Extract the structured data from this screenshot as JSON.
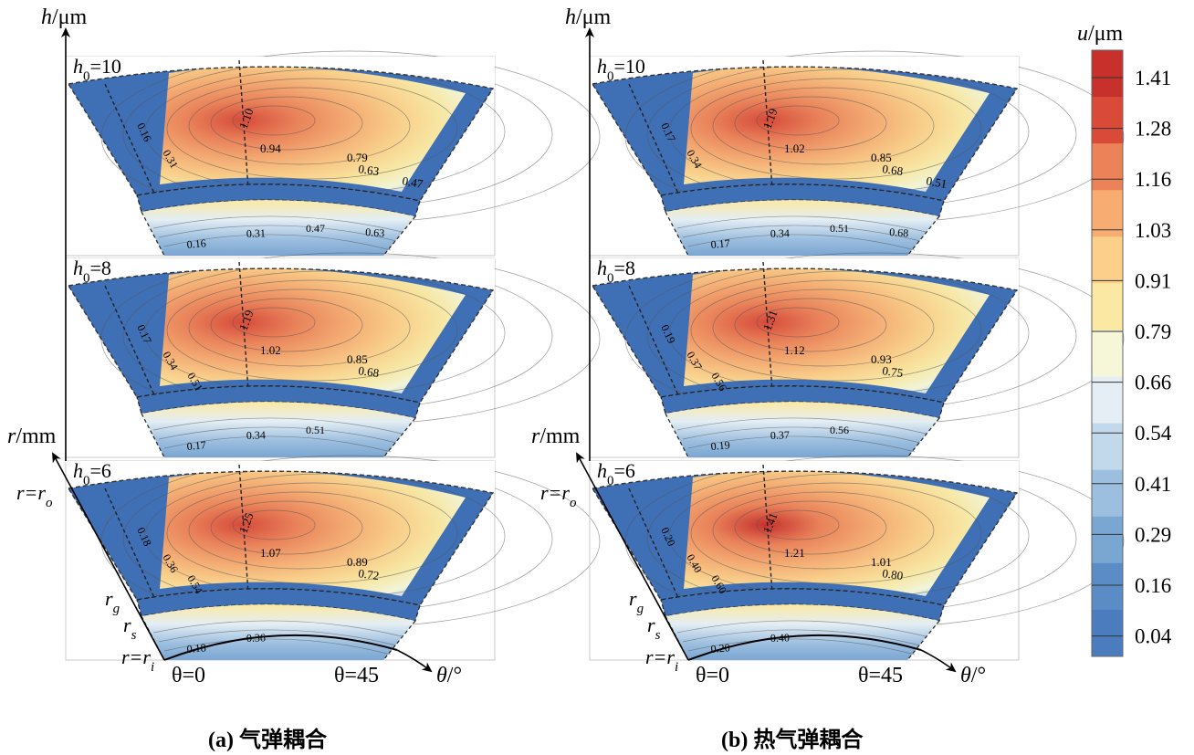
{
  "colorbar": {
    "title_var": "u",
    "title_unit": "/μm",
    "ticks": [
      "1.41",
      "1.28",
      "1.16",
      "1.03",
      "0.91",
      "0.79",
      "0.66",
      "0.54",
      "0.41",
      "0.29",
      "0.16",
      "0.04"
    ]
  },
  "axes": {
    "h_var": "h",
    "h_unit": "/μm",
    "r_var": "r",
    "r_unit": "/mm",
    "theta_var": "θ",
    "theta_unit": "/°",
    "r_o_label": "r=r",
    "r_o_sub": "o",
    "r_g_label": "r",
    "r_g_sub": "g",
    "r_s_label": "r",
    "r_s_sub": "s",
    "r_i_label": "r=r",
    "r_i_sub": "i",
    "theta0": "θ=0",
    "theta45": "θ=45"
  },
  "panels": [
    {
      "caption_prefix": "(a)",
      "caption_text": "气弹耦合",
      "layers": [
        {
          "h0_var": "h",
          "h0_sub": "0",
          "h0_value": "=10",
          "upper_labels": [
            "0.16",
            "0.31",
            "1.10",
            "0.94",
            "0.79",
            "0.63",
            "0.47"
          ],
          "lower_labels": [
            "0.16",
            "0.31",
            "0.47",
            "0.63"
          ]
        },
        {
          "h0_var": "h",
          "h0_sub": "0",
          "h0_value": "=8",
          "upper_labels": [
            "0.17",
            "0.34",
            "0.51",
            "1.19",
            "1.02",
            "0.85",
            "0.68"
          ],
          "lower_labels": [
            "0.17",
            "0.34",
            "0.51"
          ]
        },
        {
          "h0_var": "h",
          "h0_sub": "0",
          "h0_value": "=6",
          "upper_labels": [
            "0.18",
            "0.36",
            "0.54",
            "1.25",
            "1.07",
            "0.89",
            "0.72"
          ],
          "lower_labels": [
            "0.18",
            "0.36"
          ]
        }
      ]
    },
    {
      "caption_prefix": "(b)",
      "caption_text": "热气弹耦合",
      "layers": [
        {
          "h0_var": "h",
          "h0_sub": "0",
          "h0_value": "=10",
          "upper_labels": [
            "0.17",
            "0.34",
            "1.19",
            "1.02",
            "0.85",
            "0.68",
            "0.51"
          ],
          "lower_labels": [
            "0.17",
            "0.34",
            "0.51",
            "0.68"
          ]
        },
        {
          "h0_var": "h",
          "h0_sub": "0",
          "h0_value": "=8",
          "upper_labels": [
            "0.19",
            "0.37",
            "0.56",
            "1.31",
            "1.12",
            "0.93",
            "0.75"
          ],
          "lower_labels": [
            "0.19",
            "0.37",
            "0.56"
          ]
        },
        {
          "h0_var": "h",
          "h0_sub": "0",
          "h0_value": "=6",
          "upper_labels": [
            "0.20",
            "0.40",
            "0.60",
            "1.41",
            "1.21",
            "1.01",
            "0.80"
          ],
          "lower_labels": [
            "0.20",
            "0.40"
          ]
        }
      ]
    }
  ],
  "colors": {
    "ramp": [
      "#4a7cbe",
      "#5b8cc6",
      "#7aa6d2",
      "#9dbfdf",
      "#c2d8eb",
      "#e4eef4",
      "#f5f7d8",
      "#fbe9a3",
      "#fcd08a",
      "#f7ad72",
      "#ec8258",
      "#d94a38",
      "#c8302b"
    ],
    "band_deep": "#3f6fb5"
  }
}
